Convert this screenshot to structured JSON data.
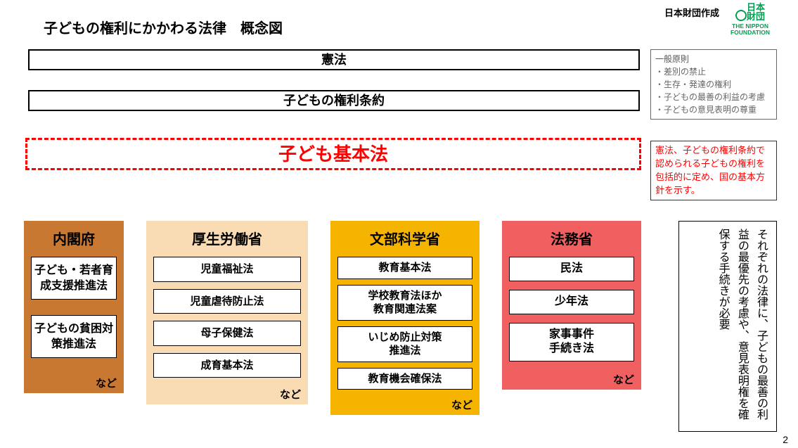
{
  "credit": "日本財団作成",
  "logo": {
    "jp": "日本\n財団",
    "en": "THE NIPPON\nFOUNDATION",
    "color": "#00a050"
  },
  "title": "子どもの権利にかかわる法律　概念図",
  "top_boxes": {
    "constitution": "憲法",
    "convention": "子どもの権利条約"
  },
  "principles": {
    "header": "一般原則",
    "items": [
      "・差別の禁止",
      "・生存・発達の権利",
      "・子どもの最善の利益の考慮",
      "・子どもの意見表明の尊重"
    ]
  },
  "basic_law": {
    "label": "子ども基本法",
    "note": "憲法、子どもの権利条約で認められる子どもの権利を包括的に定め、国の基本方針を示す。",
    "color": "#ff0000"
  },
  "ministries": [
    {
      "name": "内閣府",
      "bg": "#c87830",
      "laws": [
        "子ども・若者育成支援推進法",
        "子どもの貧困対策推進法"
      ],
      "etc": "など"
    },
    {
      "name": "厚生労働省",
      "bg": "#fadcb4",
      "laws": [
        "児童福祉法",
        "児童虐待防止法",
        "母子保健法",
        "成育基本法"
      ],
      "etc": "など"
    },
    {
      "name": "文部科学省",
      "bg": "#f5b400",
      "laws": [
        "教育基本法",
        "学校教育法ほか\n教育関連法案",
        "いじめ防止対策\n推進法",
        "教育機会確保法"
      ],
      "etc": "など"
    },
    {
      "name": "法務省",
      "bg": "#f06060",
      "laws": [
        "民法",
        "少年法",
        "家事事件\n手続き法"
      ],
      "etc": "など"
    }
  ],
  "vertical_note": "それぞれの法律に、子どもの最善の利益の最優先の考慮や、意見表明権を確保する手続きが必要",
  "page_number": "2",
  "styling": {
    "page_bg": "#ffffff",
    "text_color": "#000000",
    "muted_text": "#666666",
    "border_color": "#000000",
    "dashed_border_color": "#ff0000",
    "dashed_border_width": 3,
    "title_fontsize": 20,
    "top_box_fontsize": 18,
    "basic_law_fontsize": 26,
    "ministry_header_fontsize": 20,
    "law_item_fontsize": 15,
    "vertical_note_fontsize": 16
  }
}
